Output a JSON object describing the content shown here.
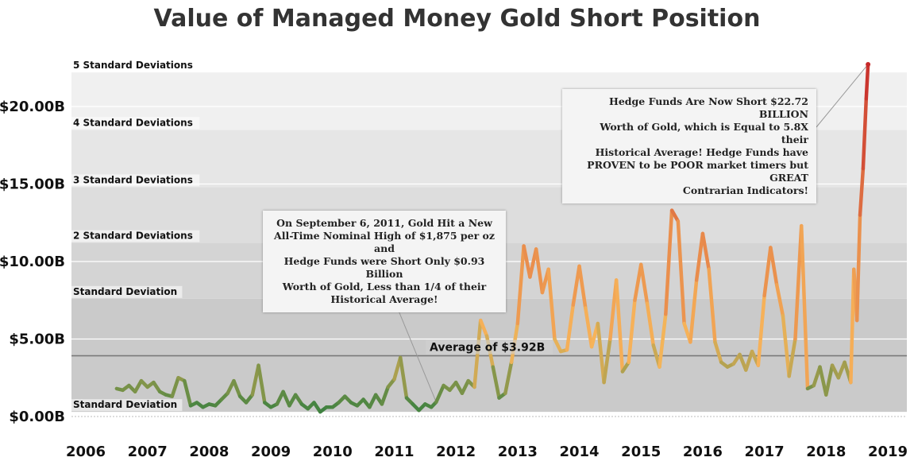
{
  "colors": {
    "band_0_1": "#cacaca",
    "band_1_2": "#d4d4d4",
    "band_2_3": "#dddddd",
    "band_3_4": "#e6e6e6",
    "band_4_5": "#f0f0f0",
    "average_line": "#7a7a7a",
    "low": "#2e7d3e",
    "mid": "#f7b55a",
    "high": "#c62a2a"
  },
  "chart_data": {
    "type": "line",
    "title": "Value of Managed Money Gold Short Position",
    "xlim": [
      2006,
      2019.2
    ],
    "ylim": [
      -0.6,
      25.0
    ],
    "x_ticks": [
      "2006",
      "2007",
      "2008",
      "2009",
      "2010",
      "2011",
      "2012",
      "2013",
      "2014",
      "2015",
      "2016",
      "2017",
      "2018",
      "2019"
    ],
    "y_ticks": [
      {
        "value": 0,
        "label": "$0.00B"
      },
      {
        "value": 5,
        "label": "$5.00B"
      },
      {
        "value": 10,
        "label": "$10.00B"
      },
      {
        "value": 15,
        "label": "$15.00B"
      },
      {
        "value": 20,
        "label": "$20.00B"
      }
    ],
    "average": {
      "value": 3.92,
      "label": "Average of $3.92B"
    },
    "std_bands": [
      {
        "value": 0.3,
        "label": "Standard Deviation"
      },
      {
        "value": 7.6,
        "label": "Standard Deviation"
      },
      {
        "value": 11.2,
        "label": "2 Standard Deviations"
      },
      {
        "value": 14.8,
        "label": "3 Standard Deviations"
      },
      {
        "value": 18.5,
        "label": "4 Standard Deviations"
      },
      {
        "value": 22.2,
        "label": "5 Standard Deviations"
      }
    ],
    "series": [
      {
        "x": [
          2006.5,
          2006.6,
          2006.7,
          2006.8,
          2006.9,
          2007.0,
          2007.1,
          2007.2,
          2007.3,
          2007.4,
          2007.5,
          2007.6,
          2007.7,
          2007.8,
          2007.9,
          2008.0,
          2008.1,
          2008.2,
          2008.3,
          2008.4,
          2008.5,
          2008.6,
          2008.7,
          2008.8,
          2008.9,
          2009.0,
          2009.1,
          2009.2,
          2009.3,
          2009.4,
          2009.5,
          2009.6,
          2009.7,
          2009.8,
          2009.9,
          2010.0,
          2010.1,
          2010.2,
          2010.3,
          2010.4,
          2010.5,
          2010.6,
          2010.7,
          2010.8,
          2010.9,
          2011.0,
          2011.1,
          2011.2,
          2011.3,
          2011.4,
          2011.5,
          2011.6,
          2011.68,
          2011.8,
          2011.9,
          2012.0,
          2012.1,
          2012.2,
          2012.3,
          2012.4,
          2012.5,
          2012.6,
          2012.7,
          2012.8,
          2012.9,
          2013.0,
          2013.1,
          2013.2,
          2013.3,
          2013.4,
          2013.5,
          2013.6,
          2013.7,
          2013.8,
          2013.9,
          2014.0,
          2014.1,
          2014.2,
          2014.3,
          2014.4,
          2014.5,
          2014.6,
          2014.7,
          2014.8,
          2014.9,
          2015.0,
          2015.1,
          2015.2,
          2015.3,
          2015.4,
          2015.5,
          2015.6,
          2015.7,
          2015.8,
          2015.9,
          2016.0,
          2016.1,
          2016.2,
          2016.3,
          2016.4,
          2016.5,
          2016.6,
          2016.7,
          2016.8,
          2016.9,
          2017.0,
          2017.1,
          2017.2,
          2017.3,
          2017.4,
          2017.5,
          2017.6,
          2017.7,
          2017.8,
          2017.9,
          2018.0,
          2018.1,
          2018.2,
          2018.3,
          2018.4,
          2018.45,
          2018.5,
          2018.55,
          2018.6,
          2018.65,
          2018.68
        ],
        "y": [
          1.8,
          1.7,
          2.0,
          1.6,
          2.3,
          1.9,
          2.2,
          1.6,
          1.4,
          1.3,
          2.5,
          2.3,
          0.7,
          0.9,
          0.6,
          0.8,
          0.7,
          1.1,
          1.5,
          2.3,
          1.3,
          0.9,
          1.4,
          3.3,
          0.9,
          0.6,
          0.8,
          1.6,
          0.7,
          1.4,
          0.8,
          0.5,
          0.9,
          0.3,
          0.6,
          0.6,
          0.9,
          1.3,
          0.9,
          0.7,
          1.1,
          0.6,
          1.4,
          0.8,
          1.9,
          2.4,
          3.8,
          1.2,
          0.8,
          0.4,
          0.8,
          0.6,
          0.93,
          2.0,
          1.7,
          2.2,
          1.5,
          2.3,
          1.9,
          6.2,
          5.2,
          3.2,
          1.2,
          1.5,
          3.5,
          6.0,
          11.0,
          9.0,
          10.8,
          8.0,
          9.5,
          5.0,
          4.2,
          4.3,
          7.2,
          9.7,
          7.0,
          4.5,
          6.0,
          2.2,
          5.0,
          8.8,
          2.9,
          3.5,
          7.5,
          9.8,
          7.3,
          4.6,
          3.2,
          6.6,
          13.3,
          12.6,
          6.0,
          4.8,
          8.8,
          11.8,
          9.5,
          4.8,
          3.5,
          3.2,
          3.4,
          4.0,
          3.0,
          4.2,
          3.3,
          7.8,
          10.9,
          8.5,
          6.5,
          2.6,
          5.0,
          12.3,
          1.8,
          2.0,
          3.2,
          1.4,
          3.3,
          2.5,
          3.5,
          2.2,
          9.5,
          6.2,
          13.0,
          16.0,
          20.5,
          22.72
        ]
      }
    ]
  },
  "annotations": {
    "note_2011": [
      "On September 6, 2011, Gold Hit a New",
      "All-Time Nominal High of $1,875 per oz and",
      "Hedge Funds were Short Only $0.93 Billion",
      "Worth of Gold, Less than 1/4 of their",
      "Historical Average!"
    ],
    "note_2018": [
      "Hedge Funds Are Now Short $22.72 BILLION",
      "Worth of Gold, which is Equal to 5.8X their",
      "Historical Average! Hedge Funds have",
      "PROVEN to be POOR market timers but GREAT",
      "Contrarian Indicators!"
    ]
  }
}
